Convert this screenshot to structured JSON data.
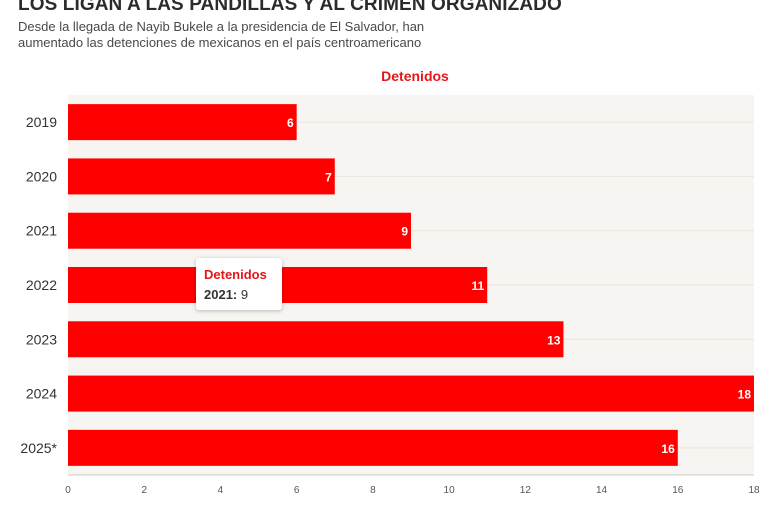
{
  "header": {
    "title": "LOS LIGAN A LAS PANDILLAS Y AL CRIMEN ORGANIZADO",
    "subtitle": "Desde la llegada de Nayib Bukele a la presidencia de El Salvador, han aumentado las detenciones de mexicanos en el país centroamericano"
  },
  "chart_data": {
    "type": "bar",
    "orientation": "horizontal",
    "categories": [
      "2019",
      "2020",
      "2021",
      "2022",
      "2023",
      "2024",
      "2025*"
    ],
    "series": [
      {
        "name": "Detenidos",
        "values": [
          6,
          7,
          9,
          11,
          13,
          18,
          16
        ]
      }
    ],
    "xlim": [
      0,
      18
    ],
    "xticks": [
      0,
      2,
      4,
      6,
      8,
      10,
      12,
      14,
      16,
      18
    ],
    "legend_title": "Detenidos",
    "grid": true,
    "colors": {
      "bar": "#ff0000",
      "plot_bg": "#f7f5f1",
      "accent": "#e3171b"
    }
  },
  "tooltip": {
    "title": "Detenidos",
    "label": "2021:",
    "value": "9"
  }
}
